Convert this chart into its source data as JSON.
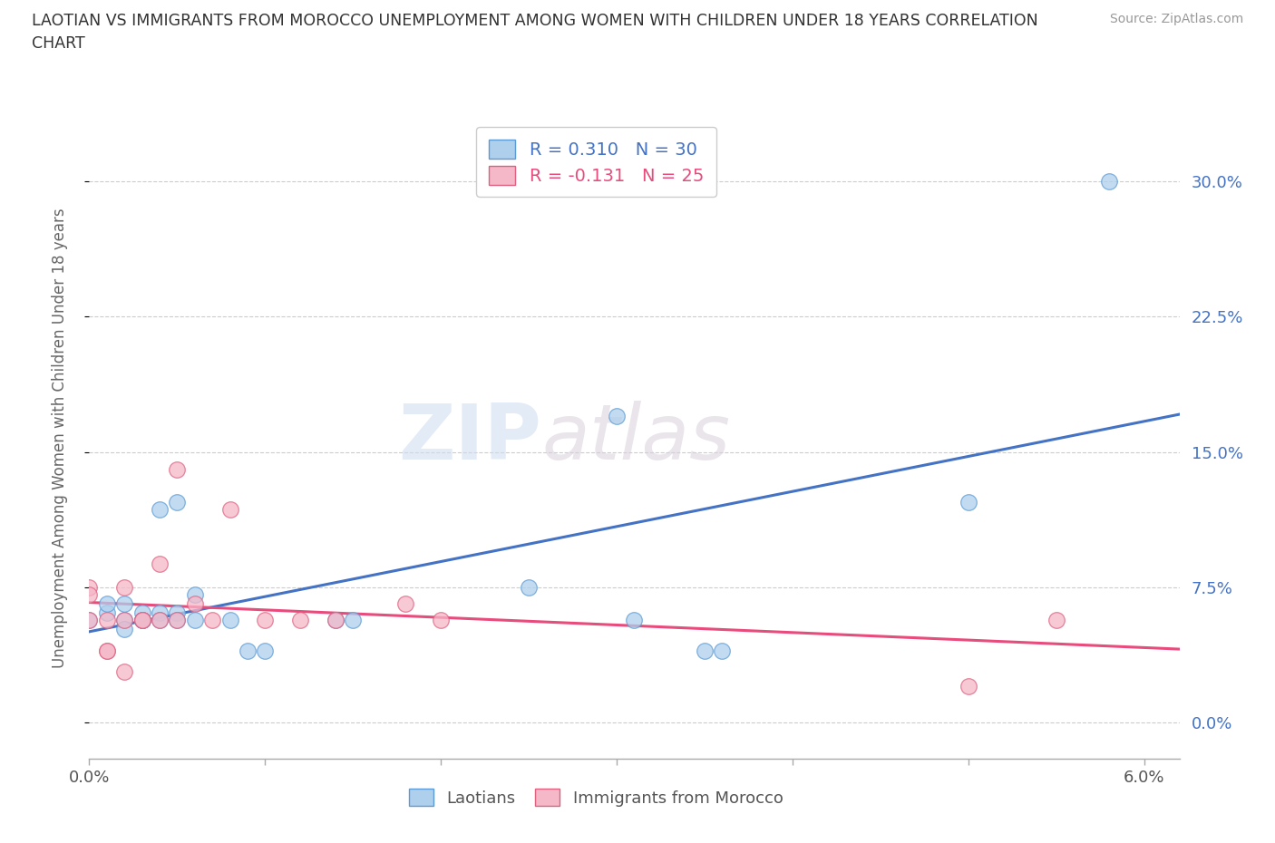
{
  "title_line1": "LAOTIAN VS IMMIGRANTS FROM MOROCCO UNEMPLOYMENT AMONG WOMEN WITH CHILDREN UNDER 18 YEARS CORRELATION",
  "title_line2": "CHART",
  "source": "Source: ZipAtlas.com",
  "ylabel": "Unemployment Among Women with Children Under 18 years",
  "xlim": [
    0.0,
    0.062
  ],
  "ylim": [
    -0.02,
    0.335
  ],
  "ytick_positions": [
    0.0,
    0.075,
    0.15,
    0.225,
    0.3
  ],
  "ytick_labels": [
    "0.0%",
    "7.5%",
    "15.0%",
    "22.5%",
    "30.0%"
  ],
  "xtick_positions": [
    0.0,
    0.01,
    0.02,
    0.03,
    0.04,
    0.05,
    0.06
  ],
  "xtick_labels": [
    "0.0%",
    "",
    "",
    "",
    "",
    "",
    "6.0%"
  ],
  "color_laotian_fill": "#afd0ed",
  "color_laotian_edge": "#5b9bd5",
  "color_morocco_fill": "#f4b8c8",
  "color_morocco_edge": "#e06080",
  "color_line_laotian": "#4472c4",
  "color_line_morocco": "#e84c7d",
  "watermark_zip": "ZIP",
  "watermark_atlas": "atlas",
  "laotian_x": [
    0.0,
    0.001,
    0.001,
    0.002,
    0.002,
    0.002,
    0.003,
    0.003,
    0.003,
    0.003,
    0.004,
    0.004,
    0.004,
    0.005,
    0.005,
    0.005,
    0.006,
    0.006,
    0.008,
    0.009,
    0.01,
    0.014,
    0.015,
    0.025,
    0.03,
    0.031,
    0.035,
    0.036,
    0.05,
    0.058
  ],
  "laotian_y": [
    0.057,
    0.061,
    0.066,
    0.066,
    0.057,
    0.052,
    0.057,
    0.057,
    0.061,
    0.057,
    0.061,
    0.057,
    0.118,
    0.122,
    0.061,
    0.057,
    0.071,
    0.057,
    0.057,
    0.04,
    0.04,
    0.057,
    0.057,
    0.075,
    0.17,
    0.057,
    0.04,
    0.04,
    0.122,
    0.3
  ],
  "morocco_x": [
    0.0,
    0.0,
    0.0,
    0.001,
    0.001,
    0.001,
    0.002,
    0.002,
    0.002,
    0.003,
    0.003,
    0.004,
    0.004,
    0.005,
    0.005,
    0.006,
    0.007,
    0.008,
    0.01,
    0.012,
    0.014,
    0.018,
    0.02,
    0.05,
    0.055
  ],
  "morocco_y": [
    0.075,
    0.071,
    0.057,
    0.057,
    0.04,
    0.04,
    0.075,
    0.057,
    0.028,
    0.057,
    0.057,
    0.088,
    0.057,
    0.14,
    0.057,
    0.066,
    0.057,
    0.118,
    0.057,
    0.057,
    0.057,
    0.066,
    0.057,
    0.02,
    0.057
  ]
}
